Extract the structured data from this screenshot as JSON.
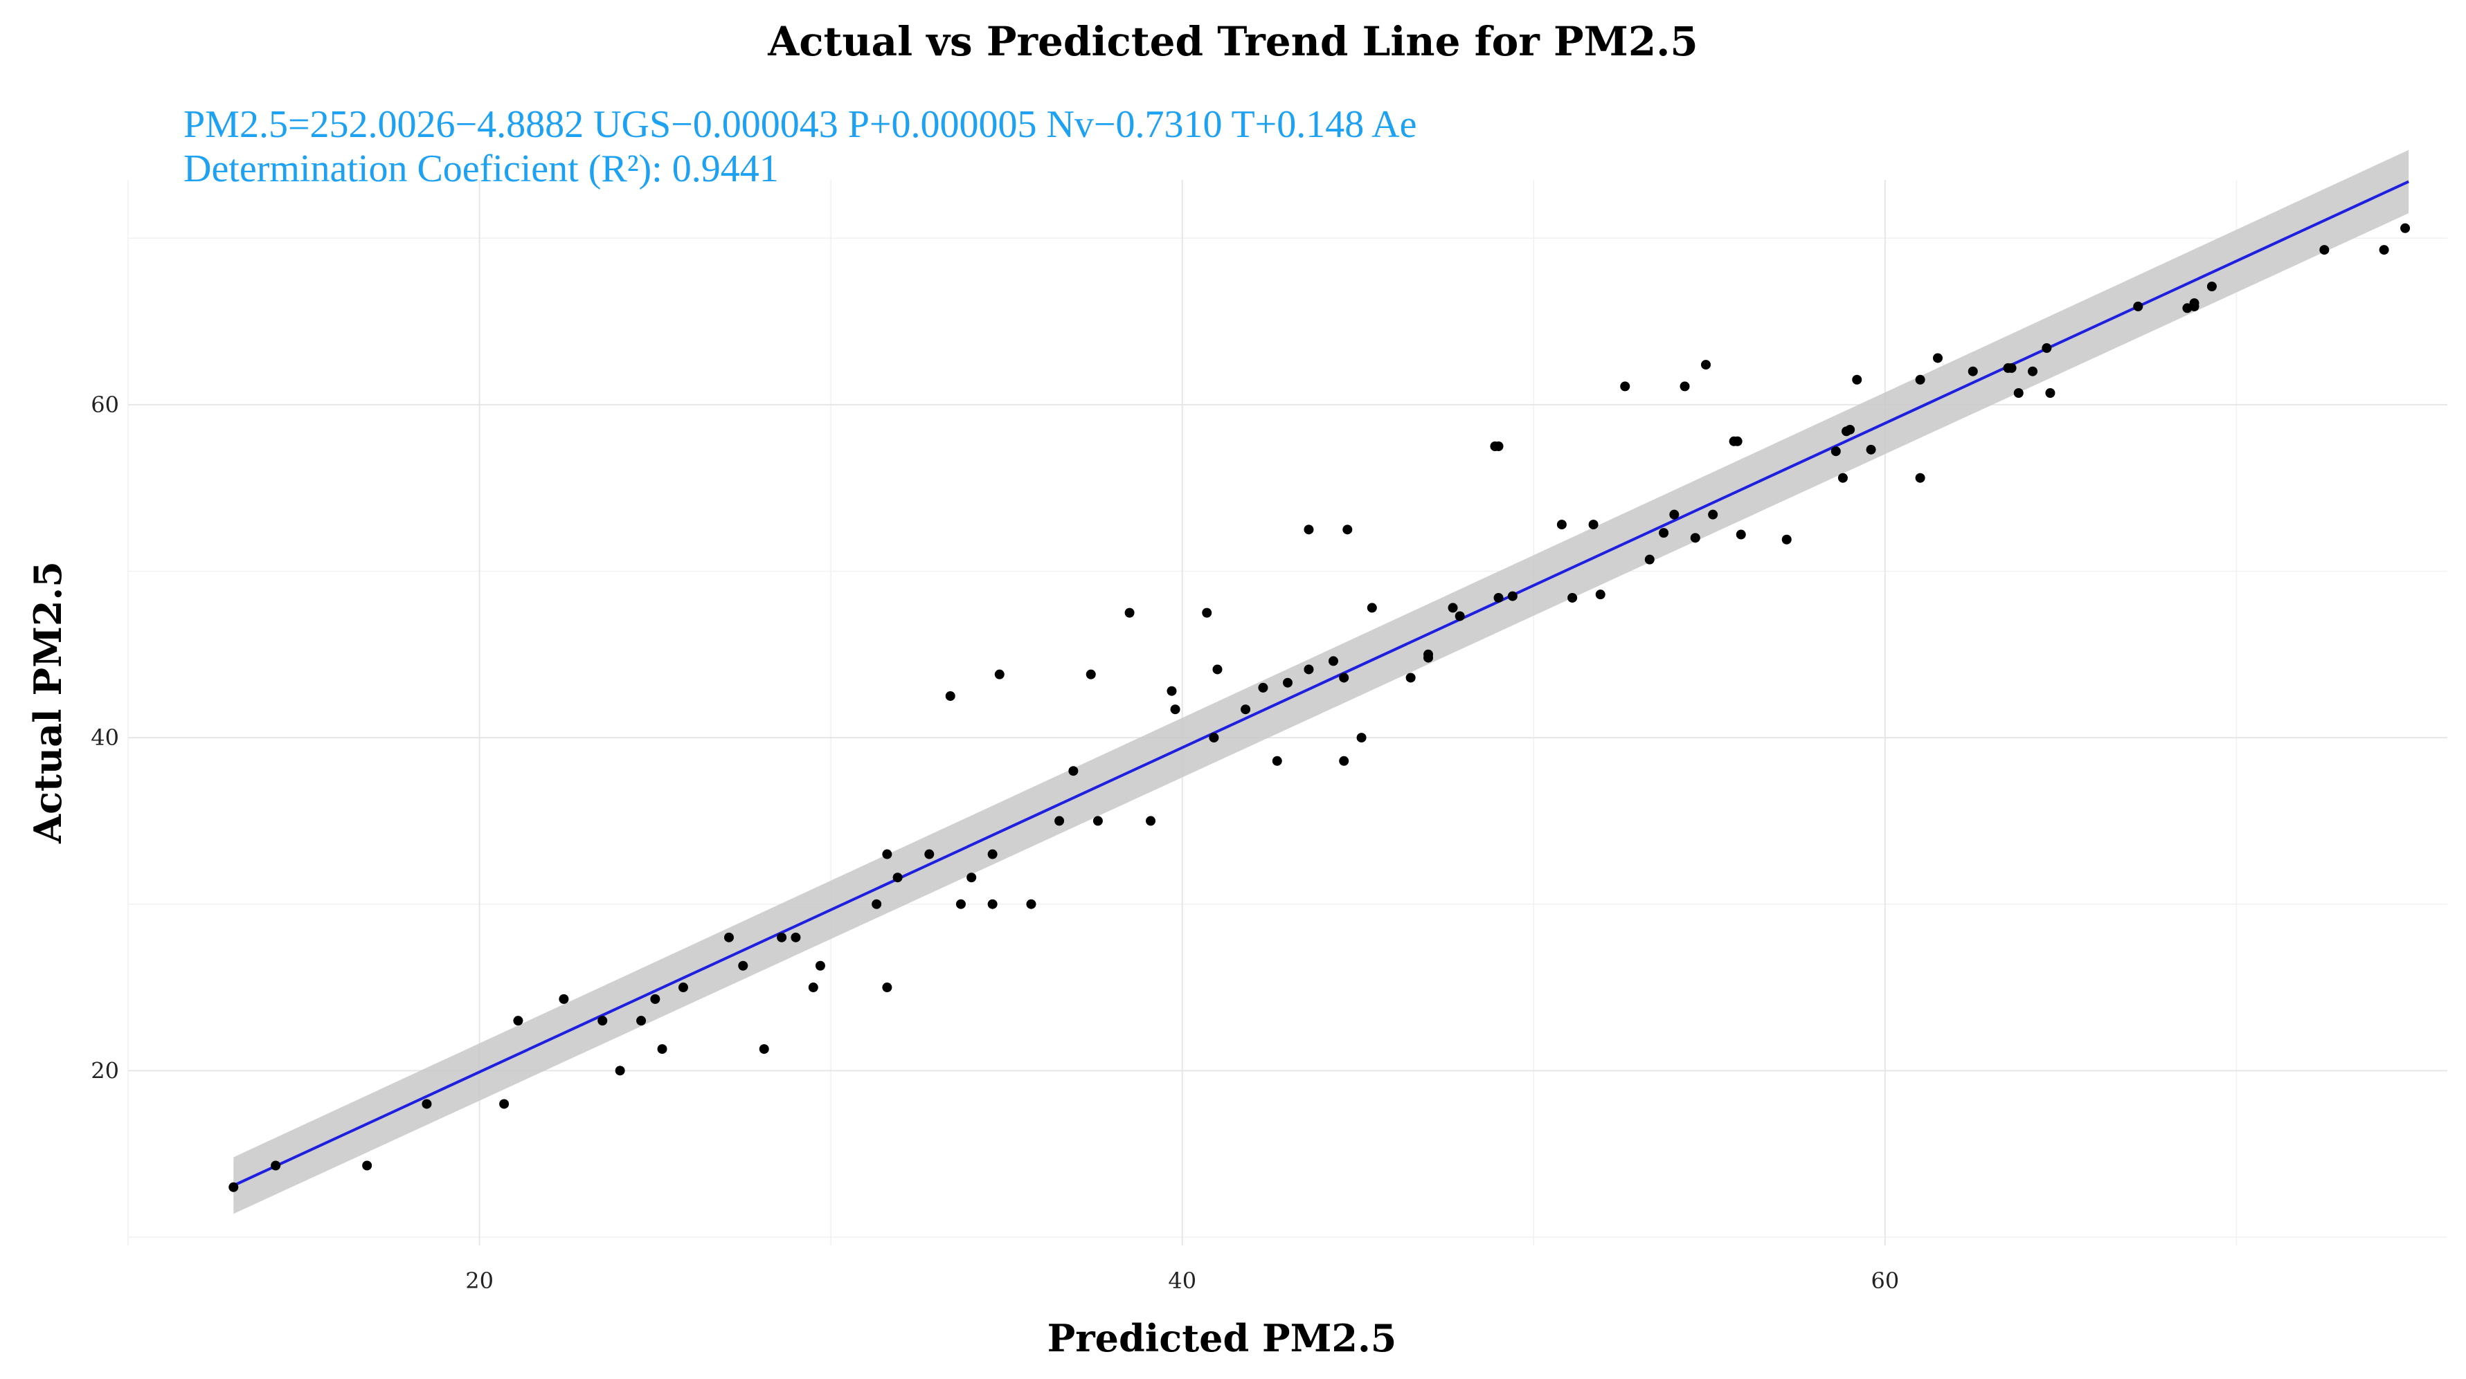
{
  "chart_data": {
    "type": "scatter",
    "title": "Actual vs Predicted Trend Line for PM2.5",
    "equation_text": "PM2.5=252.0026−4.8882 UGS−0.000043 P+0.000005 Nv−0.7310 T+0.148 Ae",
    "r2_text": "Determination Coeficient (R²): 0.9441",
    "xlabel": "Predicted PM2.5",
    "ylabel": "Actual PM2.5",
    "xlim": [
      10,
      76
    ],
    "ylim": [
      9.5,
      73.5
    ],
    "x_ticks": [
      20,
      40,
      60
    ],
    "y_ticks": [
      20,
      40,
      60
    ],
    "x_minor": [
      10,
      30,
      50,
      70
    ],
    "y_minor": [
      10,
      30,
      50,
      70
    ],
    "grid": true,
    "colors": {
      "points": "#000000",
      "line": "#1f1fe0",
      "band": "#c8c8c8",
      "annotation": "#1da1f2"
    },
    "trend_line": {
      "x": [
        13.0,
        74.9
      ],
      "y": [
        13.1,
        73.4
      ]
    },
    "confidence_band": {
      "x": [
        13.0,
        74.9
      ],
      "upper": [
        14.8,
        75.3
      ],
      "lower": [
        11.4,
        71.5
      ]
    },
    "points": [
      [
        13.0,
        13.0
      ],
      [
        14.2,
        14.3
      ],
      [
        16.8,
        14.3
      ],
      [
        18.5,
        18.0
      ],
      [
        20.7,
        18.0
      ],
      [
        21.1,
        23.0
      ],
      [
        22.4,
        24.3
      ],
      [
        23.5,
        23.0
      ],
      [
        24.0,
        20.0
      ],
      [
        24.6,
        23.0
      ],
      [
        25.0,
        24.3
      ],
      [
        25.2,
        21.3
      ],
      [
        25.8,
        25.0
      ],
      [
        27.1,
        28.0
      ],
      [
        27.5,
        26.3
      ],
      [
        28.1,
        21.3
      ],
      [
        28.6,
        28.0
      ],
      [
        29.0,
        28.0
      ],
      [
        29.5,
        25.0
      ],
      [
        29.7,
        26.3
      ],
      [
        31.3,
        30.0
      ],
      [
        31.6,
        25.0
      ],
      [
        31.6,
        33.0
      ],
      [
        31.9,
        31.6
      ],
      [
        32.8,
        33.0
      ],
      [
        33.4,
        42.5
      ],
      [
        33.7,
        30.0
      ],
      [
        34.0,
        31.6
      ],
      [
        34.6,
        33.0
      ],
      [
        34.6,
        30.0
      ],
      [
        34.8,
        43.8
      ],
      [
        35.7,
        30.0
      ],
      [
        36.5,
        35.0
      ],
      [
        36.9,
        38.0
      ],
      [
        37.4,
        43.8
      ],
      [
        37.6,
        35.0
      ],
      [
        38.5,
        47.5
      ],
      [
        39.1,
        35.0
      ],
      [
        39.7,
        42.8
      ],
      [
        39.8,
        41.7
      ],
      [
        40.7,
        47.5
      ],
      [
        40.9,
        40.0
      ],
      [
        41.0,
        44.1
      ],
      [
        41.8,
        41.7
      ],
      [
        42.3,
        43.0
      ],
      [
        42.7,
        38.6
      ],
      [
        43.0,
        43.3
      ],
      [
        43.6,
        52.5
      ],
      [
        43.6,
        44.1
      ],
      [
        44.3,
        44.6
      ],
      [
        44.6,
        38.6
      ],
      [
        44.6,
        43.6
      ],
      [
        44.7,
        52.5
      ],
      [
        45.1,
        40.0
      ],
      [
        45.4,
        47.8
      ],
      [
        46.5,
        43.6
      ],
      [
        47.0,
        44.8
      ],
      [
        47.0,
        45.0
      ],
      [
        47.7,
        47.8
      ],
      [
        47.9,
        47.3
      ],
      [
        48.9,
        57.5
      ],
      [
        49.0,
        48.4
      ],
      [
        49.0,
        57.5
      ],
      [
        49.4,
        48.5
      ],
      [
        50.8,
        52.8
      ],
      [
        51.1,
        48.4
      ],
      [
        51.7,
        52.8
      ],
      [
        51.9,
        48.6
      ],
      [
        52.6,
        61.1
      ],
      [
        53.3,
        50.7
      ],
      [
        53.7,
        52.3
      ],
      [
        54.0,
        53.4
      ],
      [
        54.3,
        61.1
      ],
      [
        54.6,
        52.0
      ],
      [
        54.9,
        62.4
      ],
      [
        55.1,
        53.4
      ],
      [
        55.7,
        57.8
      ],
      [
        55.8,
        57.8
      ],
      [
        55.9,
        52.2
      ],
      [
        57.2,
        51.9
      ],
      [
        58.6,
        57.2
      ],
      [
        58.8,
        55.6
      ],
      [
        58.9,
        58.4
      ],
      [
        59.0,
        58.5
      ],
      [
        59.2,
        61.5
      ],
      [
        59.6,
        57.3
      ],
      [
        61.0,
        61.5
      ],
      [
        61.0,
        55.6
      ],
      [
        61.5,
        62.8
      ],
      [
        62.5,
        62.0
      ],
      [
        63.5,
        62.2
      ],
      [
        63.6,
        62.2
      ],
      [
        63.8,
        60.7
      ],
      [
        64.2,
        62.0
      ],
      [
        64.6,
        63.4
      ],
      [
        64.7,
        60.7
      ],
      [
        67.2,
        65.9
      ],
      [
        68.6,
        65.8
      ],
      [
        68.8,
        65.9
      ],
      [
        68.8,
        66.1
      ],
      [
        69.3,
        67.1
      ],
      [
        72.5,
        69.3
      ],
      [
        74.2,
        69.3
      ],
      [
        74.8,
        70.6
      ]
    ]
  }
}
